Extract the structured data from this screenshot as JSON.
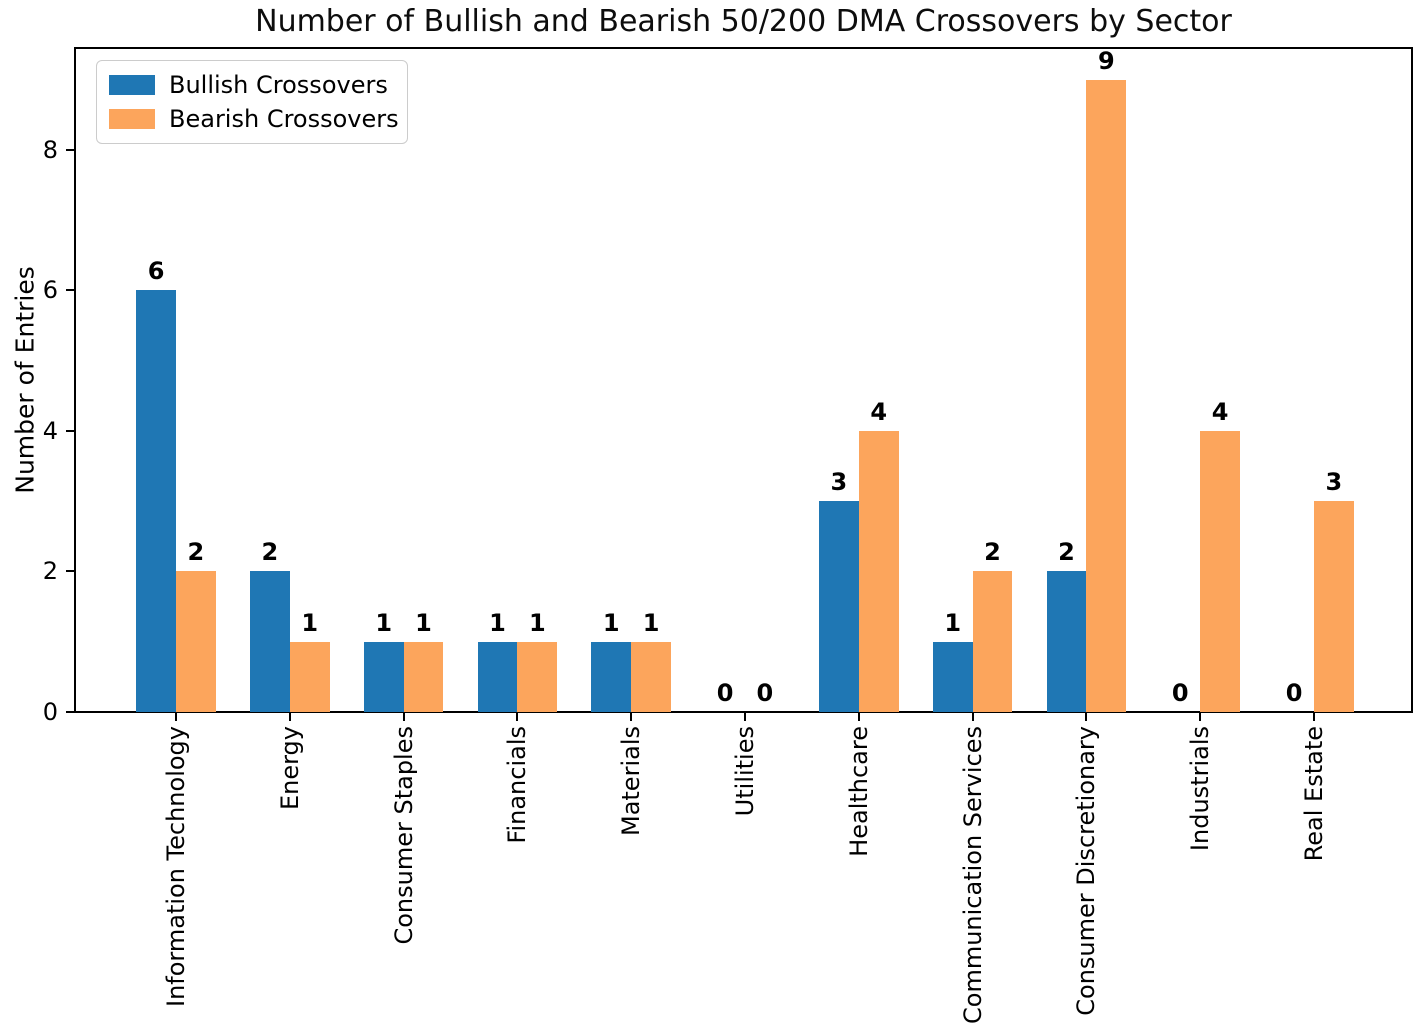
{
  "chart_data": {
    "type": "bar",
    "title": "Number of Bullish and Bearish 50/200 DMA Crossovers by Sector",
    "xlabel": "",
    "ylabel": "Number of Entries",
    "categories": [
      "Information Technology",
      "Energy",
      "Consumer Staples",
      "Financials",
      "Materials",
      "Utilities",
      "Healthcare",
      "Communication Services",
      "Consumer Discretionary",
      "Industrials",
      "Real Estate"
    ],
    "series": [
      {
        "name": "Bullish Crossovers",
        "color": "#1f77b4",
        "values": [
          6,
          2,
          1,
          1,
          1,
          0,
          3,
          1,
          2,
          0,
          0
        ]
      },
      {
        "name": "Bearish Crossovers",
        "color": "#fca55c",
        "values": [
          2,
          1,
          1,
          1,
          1,
          0,
          4,
          2,
          9,
          4,
          3
        ]
      }
    ],
    "bar_width": 0.35,
    "ylim": [
      0,
      9.45
    ],
    "yticks": [
      0,
      2,
      4,
      6,
      8
    ],
    "grid": false,
    "show_value_labels": true,
    "legend_position": "upper left",
    "axis_color": "#000000"
  }
}
